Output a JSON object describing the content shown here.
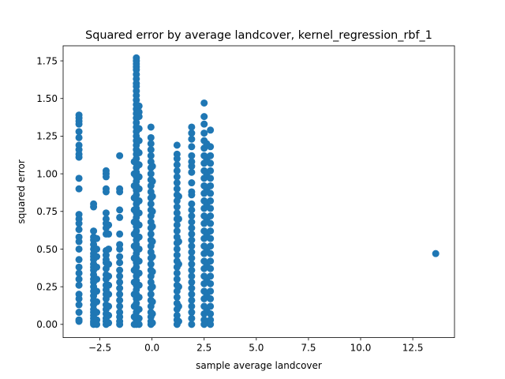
{
  "chart_data": {
    "type": "scatter",
    "title": "Squared error by average landcover, kernel_regression_rbf_1",
    "xlabel": "sample average landcover",
    "ylabel": "squared error",
    "xlim": [
      -4.26,
      14.5
    ],
    "ylim": [
      -0.088,
      1.85
    ],
    "xticks": [
      -2.5,
      0.0,
      2.5,
      5.0,
      7.5,
      10.0,
      12.5
    ],
    "xtick_labels": [
      "−2.5",
      "0.0",
      "2.5",
      "5.0",
      "7.5",
      "10.0",
      "12.5"
    ],
    "yticks": [
      0.0,
      0.25,
      0.5,
      0.75,
      1.0,
      1.25,
      1.5,
      1.75
    ],
    "ytick_labels": [
      "0.00",
      "0.25",
      "0.50",
      "0.75",
      "1.00",
      "1.25",
      "1.50",
      "1.75"
    ],
    "grid": false,
    "marker_color": "#1f77b4",
    "series": [
      {
        "columns": [
          {
            "x": -3.5,
            "y": [
              1.39,
              1.37,
              1.35,
              1.33,
              1.28,
              1.24,
              1.19,
              1.16,
              1.13,
              1.11,
              0.97,
              0.9,
              0.73,
              0.7,
              0.67,
              0.63,
              0.58,
              0.55,
              0.5,
              0.43,
              0.38,
              0.34,
              0.3,
              0.26,
              0.2,
              0.17,
              0.13,
              0.08,
              0.03,
              0.02
            ]
          },
          {
            "x": -2.8,
            "y": [
              0.8,
              0.78,
              0.62,
              0.58,
              0.56,
              0.53,
              0.5,
              0.47,
              0.45,
              0.43,
              0.4,
              0.38,
              0.36,
              0.33,
              0.3,
              0.28,
              0.25,
              0.22,
              0.19,
              0.16,
              0.13,
              0.1,
              0.08,
              0.06,
              0.04,
              0.02,
              0.01,
              0.0
            ]
          },
          {
            "x": -2.65,
            "y": [
              0.57,
              0.5,
              0.45,
              0.38,
              0.3,
              0.22,
              0.15,
              0.08,
              0.03,
              0.0
            ]
          },
          {
            "x": -2.2,
            "y": [
              1.02,
              1.0,
              0.98,
              0.9,
              0.88,
              0.74,
              0.7,
              0.67,
              0.64,
              0.6,
              0.49,
              0.46,
              0.43,
              0.41,
              0.37,
              0.33,
              0.3,
              0.26,
              0.23,
              0.2,
              0.17,
              0.13,
              0.1,
              0.07,
              0.04,
              0.02,
              0.0
            ]
          },
          {
            "x": -2.08,
            "y": [
              0.66,
              0.6,
              0.5,
              0.4,
              0.32,
              0.26,
              0.2,
              0.12,
              0.06,
              0.01
            ]
          },
          {
            "x": -1.55,
            "y": [
              1.12,
              0.9,
              0.88,
              0.76,
              0.71,
              0.6,
              0.53,
              0.5,
              0.45,
              0.41,
              0.36,
              0.32,
              0.28,
              0.24,
              0.2,
              0.16,
              0.12,
              0.08,
              0.05,
              0.02,
              0.0
            ]
          },
          {
            "x": -0.75,
            "y": [
              1.77,
              1.75,
              1.73,
              1.71,
              1.69,
              1.66,
              1.63,
              1.6,
              1.58,
              1.55,
              1.52,
              1.49,
              1.46,
              1.43,
              1.4,
              1.37,
              1.34,
              1.31,
              1.28,
              1.25,
              1.22,
              1.19,
              1.16,
              1.13,
              1.1,
              1.07,
              1.04,
              1.01,
              0.98,
              0.95,
              0.92,
              0.89,
              0.86,
              0.83,
              0.8,
              0.77,
              0.74,
              0.71,
              0.68,
              0.65,
              0.62,
              0.59,
              0.56,
              0.53,
              0.5,
              0.47,
              0.44,
              0.41,
              0.38,
              0.35,
              0.32,
              0.29,
              0.26,
              0.23,
              0.2,
              0.17,
              0.14,
              0.11,
              0.08,
              0.05,
              0.03,
              0.01,
              0.0
            ]
          },
          {
            "x": -0.62,
            "y": [
              1.45,
              1.41,
              1.38,
              1.3,
              1.22,
              1.14,
              1.06,
              0.98,
              0.9,
              0.82,
              0.74,
              0.66,
              0.58,
              0.5,
              0.42,
              0.34,
              0.26,
              0.18,
              0.1,
              0.04,
              0.0
            ]
          },
          {
            "x": -0.85,
            "y": [
              1.08,
              1.0,
              0.92,
              0.84,
              0.76,
              0.68,
              0.6,
              0.52,
              0.44,
              0.36,
              0.28,
              0.2,
              0.12,
              0.05,
              0.0
            ]
          },
          {
            "x": -0.05,
            "y": [
              1.31,
              1.24,
              1.2,
              1.16,
              1.12,
              1.08,
              1.04,
              1.0,
              0.96,
              0.92,
              0.88,
              0.84,
              0.8,
              0.76,
              0.72,
              0.68,
              0.64,
              0.6,
              0.56,
              0.52,
              0.48,
              0.44,
              0.4,
              0.36,
              0.32,
              0.28,
              0.24,
              0.2,
              0.16,
              0.12,
              0.08,
              0.05,
              0.02,
              0.0
            ]
          },
          {
            "x": 0.02,
            "y": [
              1.05,
              0.95,
              0.85,
              0.75,
              0.65,
              0.55,
              0.45,
              0.35,
              0.25,
              0.15,
              0.07,
              0.01
            ]
          },
          {
            "x": 1.2,
            "y": [
              1.19,
              1.13,
              1.1,
              1.06,
              1.02,
              0.98,
              0.94,
              0.9,
              0.86,
              0.82,
              0.78,
              0.74,
              0.7,
              0.66,
              0.62,
              0.58,
              0.54,
              0.5,
              0.46,
              0.42,
              0.38,
              0.34,
              0.3,
              0.26,
              0.22,
              0.18,
              0.14,
              0.1,
              0.06,
              0.03,
              0.0
            ]
          },
          {
            "x": 1.28,
            "y": [
              0.85,
              0.7,
              0.55,
              0.4,
              0.25,
              0.12,
              0.02
            ]
          },
          {
            "x": 1.9,
            "y": [
              1.31,
              1.27,
              1.23,
              1.18,
              1.12,
              1.08,
              1.05,
              1.01,
              0.94,
              0.88,
              0.86,
              0.8,
              0.76,
              0.72,
              0.68,
              0.64,
              0.6,
              0.56,
              0.52,
              0.48,
              0.44,
              0.4,
              0.36,
              0.32,
              0.28,
              0.24,
              0.2,
              0.16,
              0.12,
              0.08,
              0.04,
              0.0
            ]
          },
          {
            "x": 2.5,
            "y": [
              1.47,
              1.38,
              1.33,
              1.27,
              1.22,
              1.17,
              1.12,
              1.07,
              1.02,
              0.97,
              0.92,
              0.87,
              0.82,
              0.77,
              0.72,
              0.67,
              0.62,
              0.57,
              0.52,
              0.47,
              0.42,
              0.37,
              0.32,
              0.27,
              0.22,
              0.17,
              0.12,
              0.07,
              0.03,
              0.0
            ]
          },
          {
            "x": 2.62,
            "y": [
              1.2,
              1.1,
              1.0,
              0.9,
              0.8,
              0.7,
              0.6,
              0.5,
              0.4,
              0.3,
              0.2,
              0.1,
              0.02
            ]
          },
          {
            "x": 2.8,
            "y": [
              1.29,
              1.18,
              1.12,
              1.07,
              1.02,
              0.97,
              0.92,
              0.87,
              0.82,
              0.77,
              0.72,
              0.67,
              0.62,
              0.57,
              0.52,
              0.47,
              0.42,
              0.37,
              0.32,
              0.27,
              0.22,
              0.17,
              0.12,
              0.07,
              0.03,
              0.0
            ]
          }
        ],
        "points": [
          {
            "x": 13.6,
            "y": 0.47
          }
        ]
      }
    ]
  }
}
